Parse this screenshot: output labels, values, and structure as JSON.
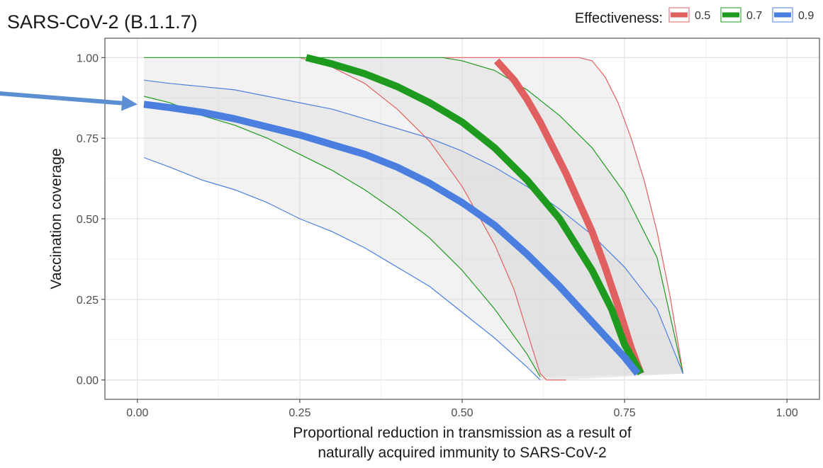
{
  "chart_data": {
    "type": "line",
    "title": "SARS-CoV-2 (B.1.1.7)",
    "xlabel_lines": [
      "Proportional reduction in transmission as a result of",
      "naturally acquired immunity to SARS-CoV-2"
    ],
    "ylabel": "Vaccination coverage",
    "xlim": [
      -0.05,
      1.05
    ],
    "ylim": [
      -0.06,
      1.06
    ],
    "x_ticks": [
      "0.00",
      "0.25",
      "0.50",
      "0.75",
      "1.00"
    ],
    "y_ticks": [
      "0.00",
      "0.25",
      "0.50",
      "0.75",
      "1.00"
    ],
    "grid": true,
    "legend": {
      "title": "Effectiveness:",
      "placement": "top-right",
      "entries": [
        "0.5",
        "0.7",
        "0.9"
      ]
    },
    "colors": {
      "0.5": "#e06060",
      "0.7": "#1e9a1e",
      "0.9": "#4a7fe0",
      "arrow": "#5b8fd1",
      "band": "#d3d3d3"
    },
    "series": [
      {
        "name": "0.5",
        "central": [
          [
            0.553,
            0.99
          ],
          [
            0.58,
            0.93
          ],
          [
            0.6,
            0.87
          ],
          [
            0.62,
            0.8
          ],
          [
            0.64,
            0.72
          ],
          [
            0.66,
            0.64
          ],
          [
            0.68,
            0.55
          ],
          [
            0.7,
            0.46
          ],
          [
            0.72,
            0.35
          ],
          [
            0.74,
            0.23
          ],
          [
            0.76,
            0.1
          ],
          [
            0.775,
            0.02
          ]
        ],
        "lower": [
          [
            0.25,
            1.0
          ],
          [
            0.3,
            0.97
          ],
          [
            0.35,
            0.92
          ],
          [
            0.4,
            0.84
          ],
          [
            0.45,
            0.74
          ],
          [
            0.5,
            0.6
          ],
          [
            0.55,
            0.42
          ],
          [
            0.58,
            0.28
          ],
          [
            0.6,
            0.15
          ],
          [
            0.62,
            0.02
          ],
          [
            0.63,
            0.0
          ],
          [
            0.66,
            0.0
          ]
        ],
        "upper": [
          [
            0.47,
            1.0
          ],
          [
            0.68,
            1.0
          ],
          [
            0.7,
            0.99
          ],
          [
            0.72,
            0.94
          ],
          [
            0.74,
            0.86
          ],
          [
            0.76,
            0.75
          ],
          [
            0.78,
            0.62
          ],
          [
            0.8,
            0.46
          ],
          [
            0.82,
            0.26
          ],
          [
            0.84,
            0.02
          ]
        ]
      },
      {
        "name": "0.7",
        "central": [
          [
            0.26,
            1.0
          ],
          [
            0.3,
            0.98
          ],
          [
            0.35,
            0.95
          ],
          [
            0.4,
            0.91
          ],
          [
            0.45,
            0.86
          ],
          [
            0.5,
            0.8
          ],
          [
            0.55,
            0.72
          ],
          [
            0.6,
            0.62
          ],
          [
            0.65,
            0.5
          ],
          [
            0.7,
            0.34
          ],
          [
            0.73,
            0.22
          ],
          [
            0.75,
            0.11
          ],
          [
            0.775,
            0.02
          ]
        ],
        "lower": [
          [
            0.01,
            0.88
          ],
          [
            0.05,
            0.86
          ],
          [
            0.1,
            0.82
          ],
          [
            0.15,
            0.79
          ],
          [
            0.2,
            0.75
          ],
          [
            0.25,
            0.7
          ],
          [
            0.3,
            0.65
          ],
          [
            0.35,
            0.59
          ],
          [
            0.4,
            0.52
          ],
          [
            0.45,
            0.44
          ],
          [
            0.5,
            0.34
          ],
          [
            0.55,
            0.22
          ],
          [
            0.6,
            0.08
          ],
          [
            0.62,
            0.01
          ]
        ],
        "upper": [
          [
            0.01,
            1.0
          ],
          [
            0.47,
            1.0
          ],
          [
            0.5,
            0.99
          ],
          [
            0.55,
            0.96
          ],
          [
            0.6,
            0.9
          ],
          [
            0.65,
            0.82
          ],
          [
            0.7,
            0.72
          ],
          [
            0.75,
            0.58
          ],
          [
            0.8,
            0.38
          ],
          [
            0.84,
            0.02
          ]
        ]
      },
      {
        "name": "0.9",
        "central": [
          [
            0.01,
            0.855
          ],
          [
            0.05,
            0.845
          ],
          [
            0.1,
            0.83
          ],
          [
            0.15,
            0.81
          ],
          [
            0.2,
            0.785
          ],
          [
            0.25,
            0.76
          ],
          [
            0.3,
            0.73
          ],
          [
            0.35,
            0.7
          ],
          [
            0.4,
            0.66
          ],
          [
            0.45,
            0.61
          ],
          [
            0.5,
            0.55
          ],
          [
            0.55,
            0.48
          ],
          [
            0.6,
            0.39
          ],
          [
            0.65,
            0.29
          ],
          [
            0.7,
            0.18
          ],
          [
            0.75,
            0.07
          ],
          [
            0.77,
            0.02
          ]
        ],
        "lower": [
          [
            0.01,
            0.69
          ],
          [
            0.05,
            0.66
          ],
          [
            0.1,
            0.62
          ],
          [
            0.15,
            0.59
          ],
          [
            0.2,
            0.55
          ],
          [
            0.25,
            0.5
          ],
          [
            0.3,
            0.46
          ],
          [
            0.35,
            0.41
          ],
          [
            0.4,
            0.35
          ],
          [
            0.45,
            0.29
          ],
          [
            0.5,
            0.21
          ],
          [
            0.55,
            0.13
          ],
          [
            0.6,
            0.04
          ],
          [
            0.62,
            0.0
          ]
        ],
        "upper": [
          [
            0.01,
            0.93
          ],
          [
            0.05,
            0.92
          ],
          [
            0.1,
            0.91
          ],
          [
            0.15,
            0.9
          ],
          [
            0.2,
            0.88
          ],
          [
            0.25,
            0.86
          ],
          [
            0.3,
            0.84
          ],
          [
            0.35,
            0.81
          ],
          [
            0.4,
            0.78
          ],
          [
            0.45,
            0.75
          ],
          [
            0.5,
            0.71
          ],
          [
            0.55,
            0.66
          ],
          [
            0.6,
            0.6
          ],
          [
            0.65,
            0.53
          ],
          [
            0.7,
            0.45
          ],
          [
            0.75,
            0.35
          ],
          [
            0.8,
            0.22
          ],
          [
            0.84,
            0.02
          ]
        ]
      }
    ],
    "annotations": [
      {
        "type": "arrow",
        "from": [
          -0.22,
          0.89
        ],
        "to": [
          0.0,
          0.855
        ]
      }
    ]
  }
}
